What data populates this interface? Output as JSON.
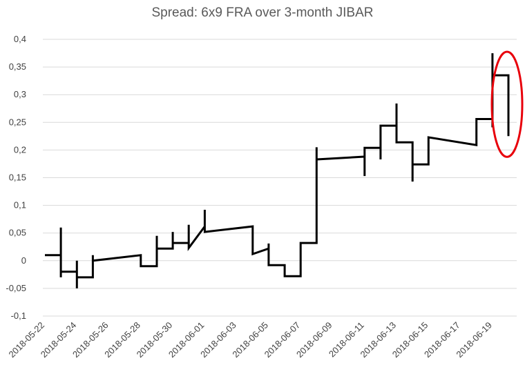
{
  "chart_data": {
    "type": "line",
    "title": "Spread: 6x9 FRA over 3-month JIBAR",
    "xlabel": "",
    "ylabel": "",
    "ylim": [
      -0.1,
      0.4
    ],
    "yticks": [
      -0.1,
      -0.05,
      0,
      0.05,
      0.1,
      0.15,
      0.2,
      0.25,
      0.3,
      0.35,
      0.4
    ],
    "ytick_labels": [
      "-0,1",
      "-0,05",
      "0",
      "0,05",
      "0,1",
      "0,15",
      "0,2",
      "0,25",
      "0,3",
      "0,35",
      "0,4"
    ],
    "xlim": [
      "2018-05-22",
      "2018-06-20"
    ],
    "xtick_labels": [
      "2018-05-22",
      "2018-05-24",
      "2018-05-26",
      "2018-05-28",
      "2018-05-30",
      "2018-06-01",
      "2018-06-03",
      "2018-06-05",
      "2018-06-07",
      "2018-06-09",
      "2018-06-11",
      "2018-06-13",
      "2018-06-15",
      "2018-06-17",
      "2018-06-19"
    ],
    "grid": "horizontal",
    "legend": "none",
    "line_color": "#000000",
    "highlight_color": "#e8000b",
    "highlight_annotation": "red ellipse around final value",
    "series": [
      {
        "x": [
          "2018-05-22",
          "2018-05-23",
          "2018-05-23",
          "2018-05-23",
          "2018-05-23",
          "2018-05-24",
          "2018-05-24",
          "2018-05-24",
          "2018-05-24",
          "2018-05-25",
          "2018-05-25",
          "2018-05-25",
          "2018-05-28",
          "2018-05-28",
          "2018-05-29",
          "2018-05-29",
          "2018-05-29",
          "2018-05-30",
          "2018-05-30",
          "2018-05-30",
          "2018-05-31",
          "2018-05-31",
          "2018-05-31",
          "2018-06-01",
          "2018-06-01",
          "2018-06-01",
          "2018-06-04",
          "2018-06-04",
          "2018-06-05",
          "2018-06-05",
          "2018-06-05",
          "2018-06-06",
          "2018-06-06",
          "2018-06-07",
          "2018-06-07",
          "2018-06-08",
          "2018-06-08",
          "2018-06-08",
          "2018-06-11",
          "2018-06-11",
          "2018-06-11",
          "2018-06-12",
          "2018-06-12",
          "2018-06-12",
          "2018-06-13",
          "2018-06-13",
          "2018-06-13",
          "2018-06-14",
          "2018-06-14",
          "2018-06-14",
          "2018-06-15",
          "2018-06-15",
          "2018-06-18",
          "2018-06-18",
          "2018-06-19",
          "2018-06-19",
          "2018-06-19",
          "2018-06-19",
          "2018-06-20",
          "2018-06-20"
        ],
        "y": [
          0.01,
          0.01,
          0.06,
          -0.03,
          -0.02,
          -0.02,
          0.0,
          -0.05,
          -0.03,
          -0.03,
          0.01,
          0.0,
          0.01,
          -0.01,
          -0.01,
          0.045,
          0.022,
          0.022,
          0.052,
          0.032,
          0.032,
          0.065,
          0.023,
          0.062,
          0.092,
          0.052,
          0.062,
          0.012,
          0.022,
          0.031,
          -0.008,
          -0.008,
          -0.028,
          -0.028,
          0.032,
          0.032,
          0.205,
          0.183,
          0.188,
          0.153,
          0.204,
          0.204,
          0.183,
          0.244,
          0.244,
          0.284,
          0.214,
          0.214,
          0.143,
          0.174,
          0.174,
          0.223,
          0.209,
          0.256,
          0.256,
          0.375,
          0.241,
          0.335,
          0.335,
          0.225
        ]
      }
    ]
  }
}
